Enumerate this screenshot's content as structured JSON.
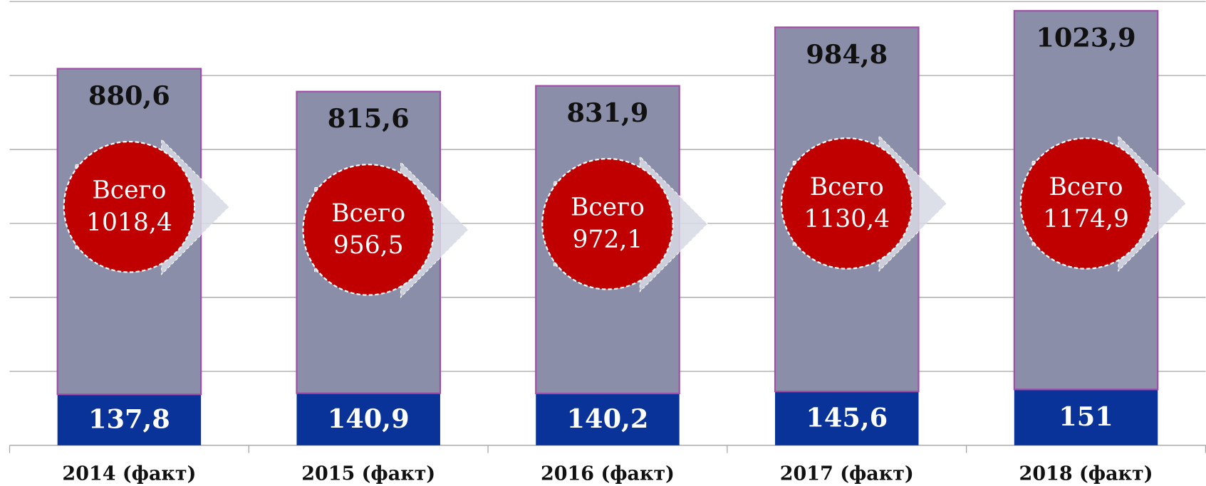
{
  "chart_data": {
    "type": "stacked_bar",
    "categories": [
      "2014 (факт)",
      "2015 (факт)",
      "2016 (факт)",
      "2017 (факт)",
      "2018 (факт)"
    ],
    "series": [
      {
        "color": "#0a3399",
        "values": [
          137.8,
          140.9,
          140.2,
          145.6,
          151
        ],
        "value_labels": [
          "137,8",
          "140,9",
          "140,2",
          "145,6",
          "151"
        ]
      },
      {
        "color": "#8a8ea8",
        "values": [
          880.6,
          815.6,
          831.9,
          984.8,
          1023.9
        ],
        "value_labels": [
          "880,6",
          "815,6",
          "831,9",
          "984,8",
          "1023,9"
        ]
      }
    ],
    "totals": {
      "name": "Всего",
      "color": "#c00000",
      "values": [
        1018.4,
        956.5,
        972.1,
        1130.4,
        1174.9
      ],
      "value_labels": [
        "1018,4",
        "956,5",
        "972,1",
        "1130,4",
        "1174,9"
      ]
    },
    "ylim": [
      0,
      1200
    ],
    "yticks": [
      0,
      200,
      400,
      600,
      800,
      1000,
      1200
    ],
    "grid": true
  }
}
